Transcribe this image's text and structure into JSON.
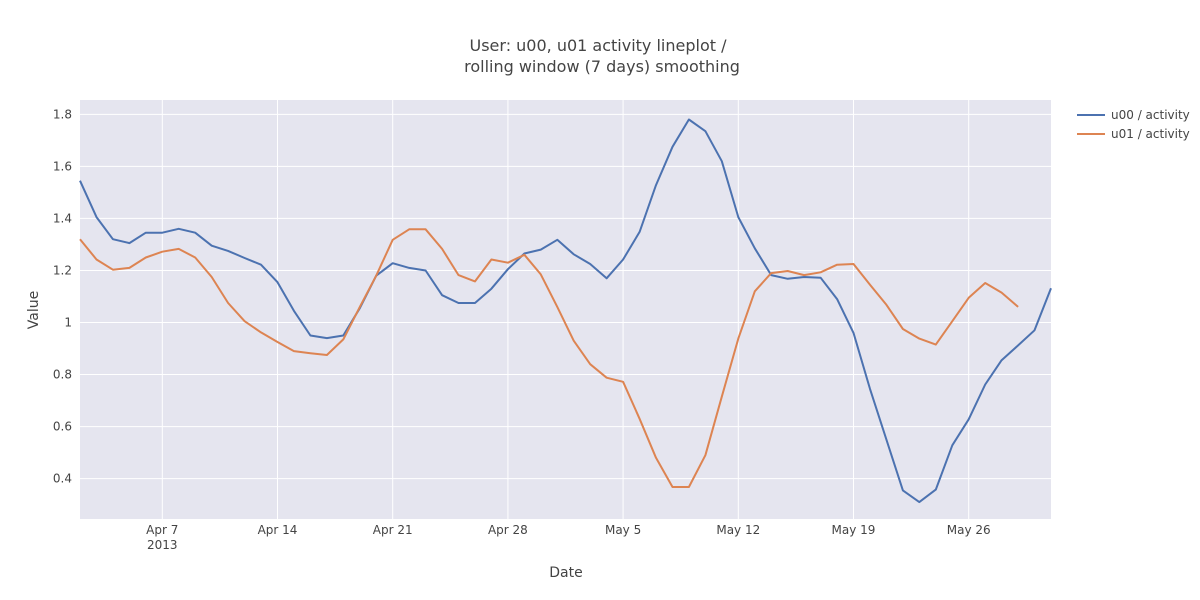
{
  "chart_data": {
    "type": "line",
    "title_lines": [
      "User: u00, u01 activity lineplot /",
      "rolling window (7 days) smoothing"
    ],
    "xlabel": "Date",
    "ylabel": "Value",
    "x_start": "2013-04-02",
    "xlim": [
      "2013-04-02",
      "2013-05-31"
    ],
    "ylim": [
      0.245,
      1.855
    ],
    "x_ticks": [
      {
        "label": "Apr 7",
        "sublabel": "2013",
        "date": "2013-04-07"
      },
      {
        "label": "Apr 14",
        "date": "2013-04-14"
      },
      {
        "label": "Apr 21",
        "date": "2013-04-21"
      },
      {
        "label": "Apr 28",
        "date": "2013-04-28"
      },
      {
        "label": "May 5",
        "date": "2013-05-05"
      },
      {
        "label": "May 12",
        "date": "2013-05-12"
      },
      {
        "label": "May 19",
        "date": "2013-05-19"
      },
      {
        "label": "May 26",
        "date": "2013-05-26"
      }
    ],
    "y_ticks": [
      {
        "label": "0.4",
        "value": 0.4
      },
      {
        "label": "0.6",
        "value": 0.6
      },
      {
        "label": "0.8",
        "value": 0.8
      },
      {
        "label": "1",
        "value": 1.0
      },
      {
        "label": "1.2",
        "value": 1.2
      },
      {
        "label": "1.4",
        "value": 1.4
      },
      {
        "label": "1.6",
        "value": 1.6
      },
      {
        "label": "1.8",
        "value": 1.8
      }
    ],
    "grid": true,
    "legend_position": "top-right, outside plot",
    "series": [
      {
        "name": "u00 / activity",
        "color": "#4c72b0",
        "values": [
          1.545,
          1.405,
          1.32,
          1.305,
          1.345,
          1.345,
          1.36,
          1.345,
          1.295,
          1.275,
          1.248,
          1.222,
          1.155,
          1.045,
          0.95,
          0.94,
          0.95,
          1.055,
          1.18,
          1.228,
          1.21,
          1.2,
          1.105,
          1.075,
          1.075,
          1.13,
          1.205,
          1.265,
          1.28,
          1.318,
          1.262,
          1.225,
          1.17,
          1.242,
          1.348,
          1.528,
          1.675,
          1.78,
          1.735,
          1.62,
          1.405,
          1.285,
          1.182,
          1.168,
          1.175,
          1.172,
          1.09,
          0.96,
          0.745,
          0.55,
          0.355,
          0.31,
          0.358,
          0.528,
          0.628,
          0.762,
          0.855,
          0.912,
          0.97,
          1.132
        ]
      },
      {
        "name": "u01 / activity",
        "color": "#dd8452",
        "values": [
          1.32,
          1.242,
          1.203,
          1.21,
          1.25,
          1.272,
          1.283,
          1.25,
          1.175,
          1.075,
          1.005,
          0.962,
          0.925,
          0.89,
          0.882,
          0.875,
          0.935,
          1.06,
          1.18,
          1.318,
          1.358,
          1.358,
          1.283,
          1.182,
          1.158,
          1.242,
          1.23,
          1.26,
          1.185,
          1.06,
          0.93,
          0.84,
          0.788,
          0.772,
          0.63,
          0.48,
          0.368,
          0.368,
          0.49,
          0.715,
          0.938,
          1.12,
          1.19,
          1.198,
          1.182,
          1.193,
          1.222,
          1.225,
          1.145,
          1.068,
          0.975,
          0.938,
          0.915,
          1.005,
          1.095,
          1.152,
          1.115,
          1.06
        ]
      }
    ]
  }
}
